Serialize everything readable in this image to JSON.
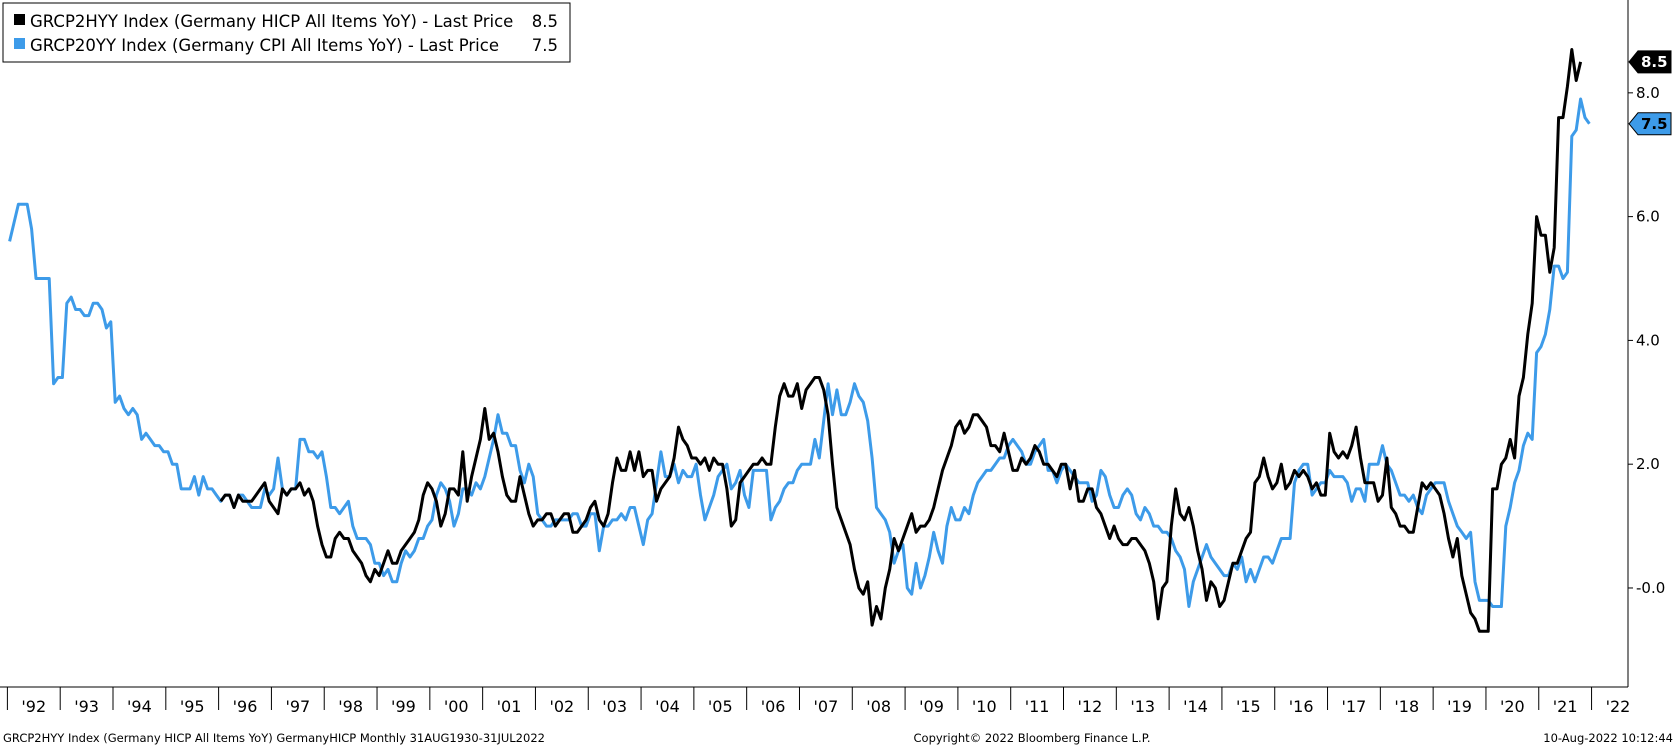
{
  "chart_data": {
    "type": "line",
    "legend": [
      {
        "ticker_label": "GRCP2HYY Index (Germany HICP All Items YoY) - Last Price",
        "last": "8.5",
        "color": "#000000"
      },
      {
        "ticker_label": "GRCP20YY Index (Germany CPI All Items YoY) - Last Price",
        "last": "7.5",
        "color": "#3d9be9"
      }
    ],
    "legend_placement": "top-left",
    "x_range": [
      1991.86,
      2022.69
    ],
    "ylim": [
      -1.6,
      9.5
    ],
    "y_ticks": [
      "-0.0",
      "2.0",
      "4.0",
      "6.0",
      "8.0"
    ],
    "y_tick_values": [
      0,
      2,
      4,
      6,
      8
    ],
    "x_ticks": [
      "'92",
      "'93",
      "'94",
      "'95",
      "'96",
      "'97",
      "'98",
      "'99",
      "'00",
      "'01",
      "'02",
      "'03",
      "'04",
      "'05",
      "'06",
      "'07",
      "'08",
      "'09",
      "'10",
      "'11",
      "'12",
      "'13",
      "'14",
      "'15",
      "'16",
      "'17",
      "'18",
      "'19",
      "'20",
      "'21",
      "'22"
    ],
    "x_tick_years": [
      1992,
      1993,
      1994,
      1995,
      1996,
      1997,
      1998,
      1999,
      2000,
      2001,
      2002,
      2003,
      2004,
      2005,
      2006,
      2007,
      2008,
      2009,
      2010,
      2011,
      2012,
      2013,
      2014,
      2015,
      2016,
      2017,
      2018,
      2019,
      2020,
      2021,
      2022
    ],
    "grid": false,
    "series": [
      {
        "name": "GRCP20YY Index (Germany CPI All Items YoY)",
        "color": "#3d9be9",
        "start": "1992-01",
        "values": [
          5.6,
          5.9,
          6.2,
          6.2,
          6.2,
          5.8,
          5.0,
          5.0,
          5.0,
          5.0,
          3.3,
          3.4,
          3.4,
          4.6,
          4.7,
          4.5,
          4.5,
          4.4,
          4.4,
          4.6,
          4.6,
          4.5,
          4.2,
          4.3,
          3.0,
          3.1,
          2.9,
          2.8,
          2.9,
          2.8,
          2.4,
          2.5,
          2.4,
          2.3,
          2.3,
          2.2,
          2.2,
          2.0,
          2.0,
          1.6,
          1.6,
          1.6,
          1.8,
          1.5,
          1.8,
          1.6,
          1.6,
          1.5,
          1.4,
          1.5,
          1.5,
          1.3,
          1.5,
          1.5,
          1.4,
          1.3,
          1.3,
          1.3,
          1.6,
          1.5,
          1.6,
          2.1,
          1.6,
          1.5,
          1.6,
          1.6,
          2.4,
          2.4,
          2.2,
          2.2,
          2.1,
          2.2,
          1.8,
          1.3,
          1.3,
          1.2,
          1.3,
          1.4,
          1.0,
          0.8,
          0.8,
          0.8,
          0.7,
          0.4,
          0.4,
          0.2,
          0.3,
          0.1,
          0.1,
          0.4,
          0.6,
          0.5,
          0.6,
          0.8,
          0.8,
          1.0,
          1.1,
          1.5,
          1.7,
          1.6,
          1.4,
          1.0,
          1.2,
          1.6,
          1.6,
          1.5,
          1.7,
          1.6,
          1.8,
          2.1,
          2.4,
          2.8,
          2.5,
          2.5,
          2.3,
          2.3,
          1.9,
          1.7,
          2.0,
          1.8,
          1.2,
          1.1,
          1.0,
          1.0,
          1.1,
          1.1,
          1.1,
          1.1,
          1.2,
          1.2,
          1.0,
          1.0,
          1.2,
          1.2,
          0.6,
          1.0,
          1.0,
          1.1,
          1.1,
          1.2,
          1.1,
          1.3,
          1.3,
          1.0,
          0.7,
          1.1,
          1.2,
          1.7,
          2.2,
          1.8,
          1.8,
          2.0,
          1.7,
          1.9,
          1.8,
          1.8,
          2.0,
          1.5,
          1.1,
          1.3,
          1.5,
          1.8,
          1.9,
          2.0,
          1.6,
          1.7,
          1.9,
          1.5,
          1.3,
          1.9,
          1.9,
          1.9,
          1.9,
          1.1,
          1.3,
          1.4,
          1.6,
          1.7,
          1.7,
          1.9,
          2.0,
          2.0,
          2.0,
          2.4,
          2.1,
          2.7,
          3.3,
          2.8,
          3.2,
          2.8,
          2.8,
          3.0,
          3.3,
          3.1,
          3.0,
          2.7,
          2.1,
          1.3,
          1.2,
          1.1,
          0.9,
          0.4,
          0.6,
          0.7,
          0.0,
          -0.1,
          0.4,
          0.0,
          0.2,
          0.5,
          0.9,
          0.6,
          0.4,
          1.0,
          1.3,
          1.1,
          1.1,
          1.3,
          1.2,
          1.5,
          1.7,
          1.8,
          1.9,
          1.9,
          2.0,
          2.1,
          2.1,
          2.3,
          2.4,
          2.3,
          2.2,
          2.0,
          2.0,
          2.2,
          2.3,
          2.4,
          1.9,
          1.9,
          1.7,
          1.9,
          2.0,
          1.9,
          1.8,
          1.7,
          1.7,
          1.7,
          1.4,
          1.5,
          1.9,
          1.8,
          1.5,
          1.3,
          1.3,
          1.5,
          1.6,
          1.5,
          1.2,
          1.1,
          1.3,
          1.2,
          1.0,
          1.0,
          0.9,
          0.9,
          0.8,
          0.6,
          0.5,
          0.3,
          -0.3,
          0.1,
          0.3,
          0.5,
          0.7,
          0.5,
          0.4,
          0.3,
          0.2,
          0.2,
          0.4,
          0.3,
          0.5,
          0.1,
          0.3,
          0.1,
          0.3,
          0.5,
          0.5,
          0.4,
          0.6,
          0.8,
          0.8,
          0.8,
          1.7,
          1.9,
          2.0,
          2.0,
          1.5,
          1.6,
          1.7,
          1.7,
          1.9,
          1.8,
          1.8,
          1.8,
          1.7,
          1.4,
          1.6,
          1.6,
          1.4,
          2.0,
          2.0,
          2.0,
          2.3,
          2.0,
          1.9,
          1.7,
          1.5,
          1.5,
          1.4,
          1.5,
          1.3,
          1.2,
          1.5,
          1.6,
          1.7,
          1.7,
          1.7,
          1.4,
          1.2,
          1.0,
          0.9,
          0.8,
          0.9,
          0.1,
          -0.2,
          -0.2,
          -0.2,
          -0.3,
          -0.3,
          -0.3,
          1.0,
          1.3,
          1.7,
          1.9,
          2.3,
          2.5,
          2.4,
          3.8,
          3.9,
          4.1,
          4.5,
          5.2,
          5.2,
          5.0,
          5.1,
          7.3,
          7.4,
          7.9,
          7.6,
          7.5
        ]
      },
      {
        "name": "GRCP2HYY Index (Germany HICP All Items YoY)",
        "color": "#000000",
        "start": "1996-01",
        "values": [
          1.4,
          1.5,
          1.5,
          1.3,
          1.5,
          1.4,
          1.4,
          1.4,
          1.5,
          1.6,
          1.7,
          1.4,
          1.3,
          1.2,
          1.6,
          1.5,
          1.6,
          1.6,
          1.7,
          1.5,
          1.6,
          1.4,
          1.0,
          0.7,
          0.5,
          0.5,
          0.8,
          0.9,
          0.8,
          0.8,
          0.6,
          0.5,
          0.4,
          0.2,
          0.1,
          0.3,
          0.2,
          0.4,
          0.6,
          0.4,
          0.4,
          0.6,
          0.7,
          0.8,
          0.9,
          1.1,
          1.5,
          1.7,
          1.6,
          1.4,
          1.0,
          1.2,
          1.6,
          1.6,
          1.5,
          2.2,
          1.4,
          1.8,
          2.1,
          2.4,
          2.9,
          2.4,
          2.5,
          2.2,
          1.8,
          1.5,
          1.4,
          1.4,
          1.8,
          1.5,
          1.2,
          1.0,
          1.1,
          1.1,
          1.2,
          1.2,
          1.0,
          1.1,
          1.2,
          1.2,
          0.9,
          0.9,
          1.0,
          1.1,
          1.3,
          1.4,
          1.1,
          1.0,
          1.2,
          1.7,
          2.1,
          1.9,
          1.9,
          2.2,
          1.9,
          2.2,
          1.8,
          1.9,
          1.9,
          1.4,
          1.6,
          1.7,
          1.8,
          2.1,
          2.6,
          2.4,
          2.3,
          2.1,
          2.1,
          2.0,
          2.1,
          1.9,
          2.1,
          2.0,
          2.0,
          1.6,
          1.0,
          1.1,
          1.7,
          1.8,
          1.9,
          2.0,
          2.0,
          2.1,
          2.0,
          2.0,
          2.6,
          3.1,
          3.3,
          3.1,
          3.1,
          3.3,
          2.9,
          3.2,
          3.3,
          3.4,
          3.4,
          3.2,
          2.8,
          2.0,
          1.3,
          1.1,
          0.9,
          0.7,
          0.3,
          0.0,
          -0.1,
          0.1,
          -0.6,
          -0.3,
          -0.5,
          0.0,
          0.3,
          0.8,
          0.6,
          0.8,
          1.0,
          1.2,
          0.9,
          1.0,
          1.0,
          1.1,
          1.3,
          1.6,
          1.9,
          2.1,
          2.3,
          2.6,
          2.7,
          2.5,
          2.6,
          2.8,
          2.8,
          2.7,
          2.6,
          2.3,
          2.3,
          2.2,
          2.5,
          2.2,
          1.9,
          1.9,
          2.1,
          2.0,
          2.1,
          2.3,
          2.2,
          2.0,
          2.0,
          1.9,
          1.8,
          2.0,
          2.0,
          1.6,
          1.9,
          1.4,
          1.4,
          1.6,
          1.6,
          1.3,
          1.2,
          1.0,
          0.8,
          1.0,
          0.8,
          0.7,
          0.7,
          0.8,
          0.8,
          0.7,
          0.6,
          0.4,
          0.1,
          -0.5,
          0.0,
          0.1,
          1.0,
          1.6,
          1.2,
          1.1,
          1.3,
          1.0,
          0.6,
          0.3,
          -0.2,
          0.1,
          0.0,
          -0.3,
          -0.2,
          0.1,
          0.4,
          0.4,
          0.6,
          0.8,
          0.9,
          1.7,
          1.8,
          2.1,
          1.8,
          1.6,
          1.7,
          2.0,
          1.6,
          1.7,
          1.9,
          1.8,
          1.9,
          1.8,
          1.6,
          1.7,
          1.5,
          1.5,
          2.5,
          2.2,
          2.1,
          2.2,
          2.1,
          2.3,
          2.6,
          2.1,
          1.7,
          1.7,
          1.7,
          1.4,
          1.5,
          2.1,
          1.3,
          1.2,
          1.0,
          1.0,
          0.9,
          0.9,
          1.3,
          1.7,
          1.6,
          1.7,
          1.6,
          1.5,
          1.2,
          0.8,
          0.5,
          0.8,
          0.2,
          -0.1,
          -0.4,
          -0.5,
          -0.7,
          -0.7,
          -0.7,
          1.6,
          1.6,
          2.0,
          2.1,
          2.4,
          2.1,
          3.1,
          3.4,
          4.1,
          4.6,
          6.0,
          5.7,
          5.7,
          5.1,
          5.5,
          7.6,
          7.6,
          8.1,
          8.7,
          8.2,
          8.5
        ]
      }
    ]
  },
  "footer": {
    "left": "GRCP2HYY Index (Germany HICP All Items YoY) GermanyHICP  Monthly 31AUG1930-31JUL2022",
    "center": "Copyright© 2022 Bloomberg Finance L.P.",
    "right": "10-Aug-2022 10:12:44"
  }
}
